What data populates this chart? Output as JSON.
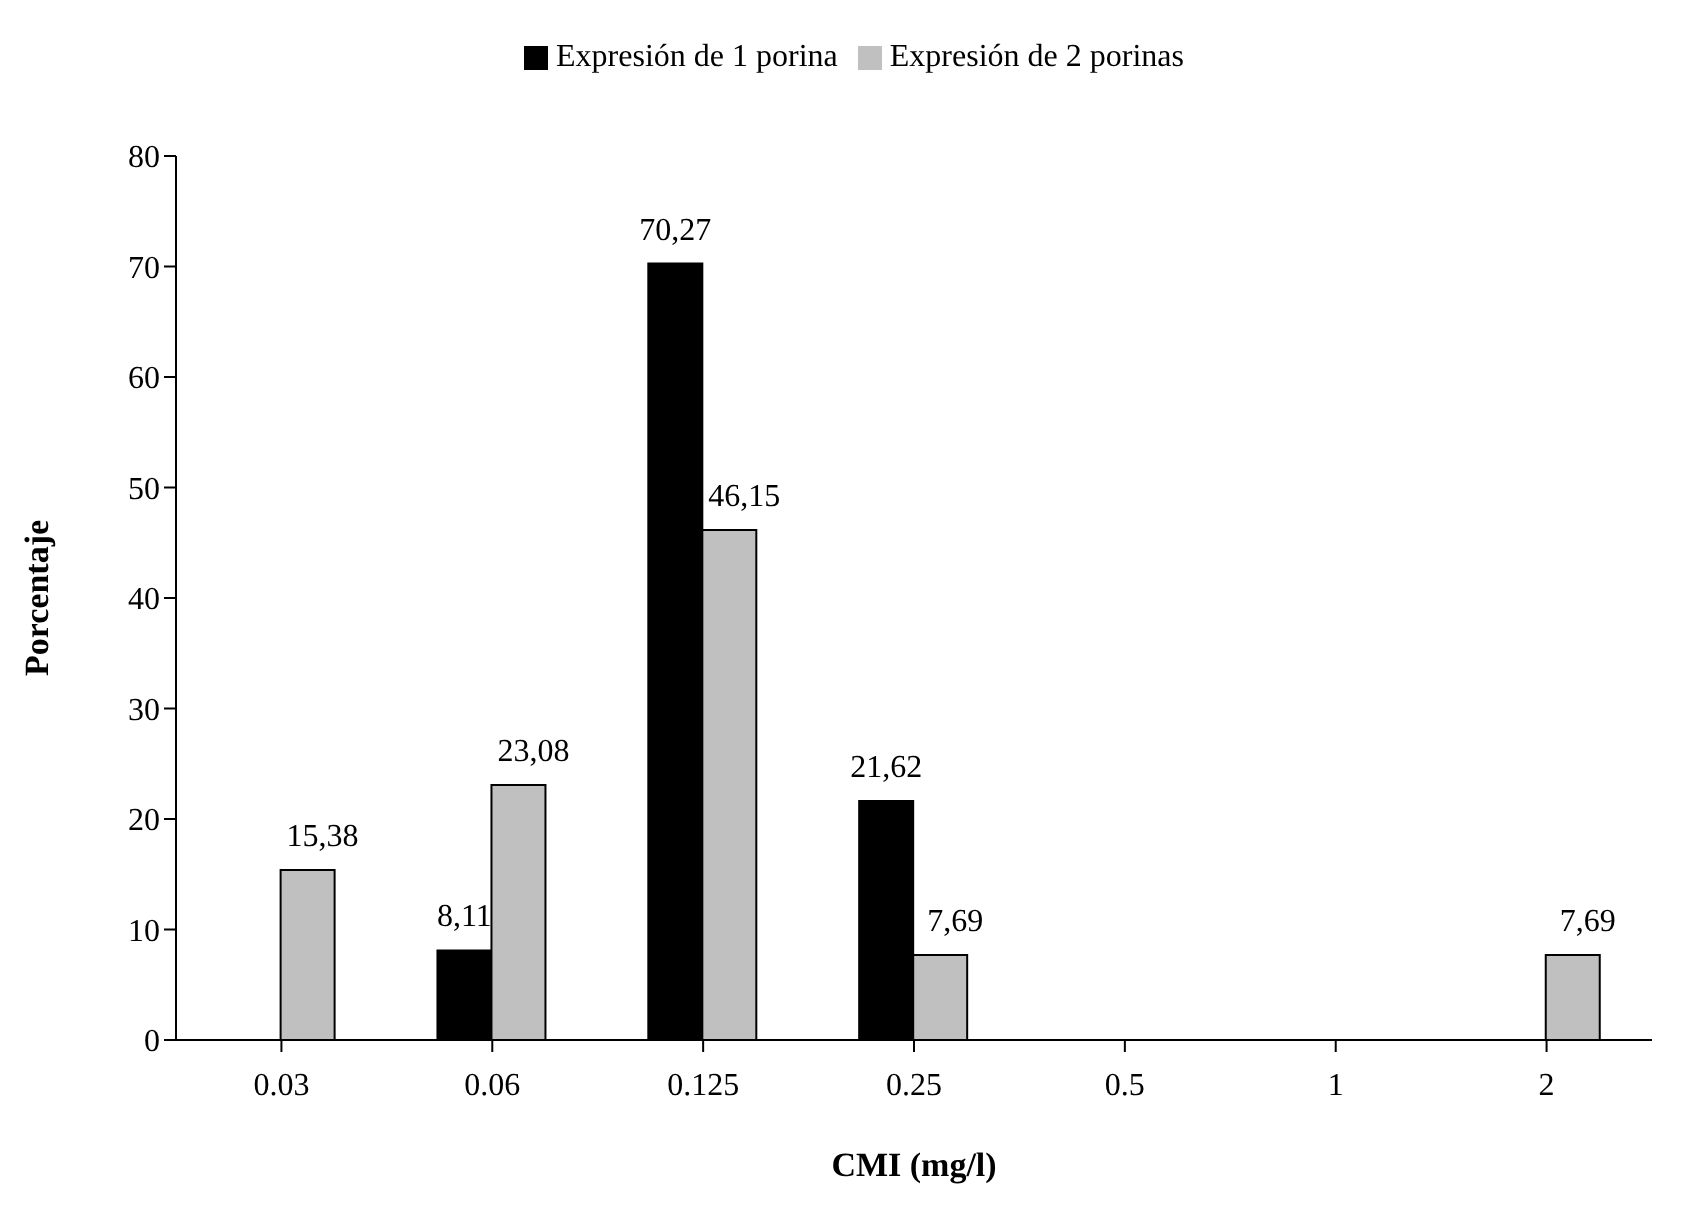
{
  "chart_data": {
    "type": "bar",
    "xlabel": "CMI (mg/l)",
    "ylabel": "Porcentaje",
    "categories": [
      "0.03",
      "0.06",
      "0.125",
      "0.25",
      "0.5",
      "1",
      "2"
    ],
    "series": [
      {
        "name": "Expresión de 1 porina",
        "color": "#000000",
        "values": [
          null,
          8.11,
          70.27,
          21.62,
          null,
          null,
          null
        ],
        "value_labels": [
          null,
          "8,11",
          "70,27",
          "21,62",
          null,
          null,
          null
        ]
      },
      {
        "name": "Expresión de 2 porinas",
        "color": "#c0c0c0",
        "values": [
          15.38,
          23.08,
          46.15,
          7.69,
          null,
          null,
          7.69
        ],
        "value_labels": [
          "15,38",
          "23,08",
          "46,15",
          "7,69",
          null,
          null,
          "7,69"
        ]
      }
    ],
    "ylim": [
      0,
      80
    ],
    "yticks": [
      0,
      10,
      20,
      30,
      40,
      50,
      60,
      70,
      80
    ],
    "legend": "top",
    "grid": false
  }
}
